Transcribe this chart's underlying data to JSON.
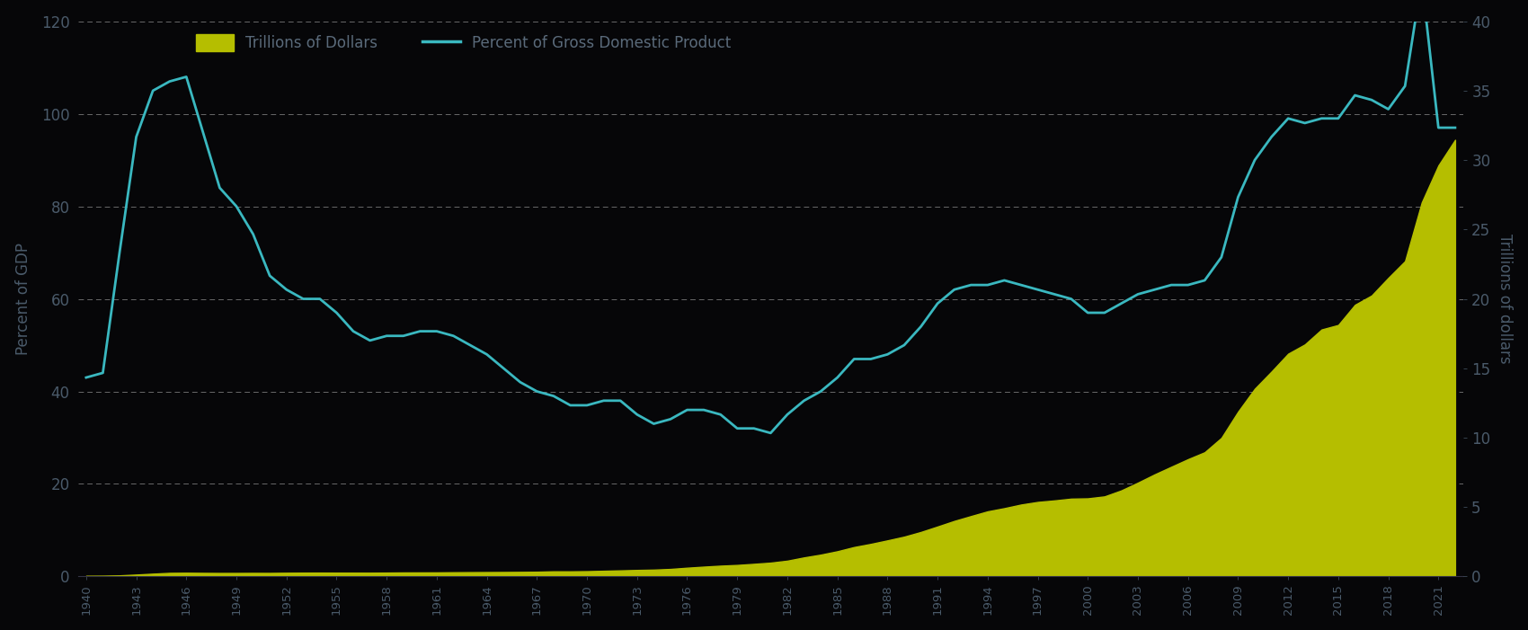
{
  "years": [
    1940,
    1941,
    1942,
    1943,
    1944,
    1945,
    1946,
    1947,
    1948,
    1949,
    1950,
    1951,
    1952,
    1953,
    1954,
    1955,
    1956,
    1957,
    1958,
    1959,
    1960,
    1961,
    1962,
    1963,
    1964,
    1965,
    1966,
    1967,
    1968,
    1969,
    1970,
    1971,
    1972,
    1973,
    1974,
    1975,
    1976,
    1977,
    1978,
    1979,
    1980,
    1981,
    1982,
    1983,
    1984,
    1985,
    1986,
    1987,
    1988,
    1989,
    1990,
    1991,
    1992,
    1993,
    1994,
    1995,
    1996,
    1997,
    1998,
    1999,
    2000,
    2001,
    2002,
    2003,
    2004,
    2005,
    2006,
    2007,
    2008,
    2009,
    2010,
    2011,
    2012,
    2013,
    2014,
    2015,
    2016,
    2017,
    2018,
    2019,
    2020,
    2021,
    2022
  ],
  "debt_pct_gdp": [
    43,
    44,
    70,
    95,
    105,
    107,
    108,
    96,
    84,
    80,
    74,
    65,
    62,
    60,
    60,
    57,
    53,
    51,
    52,
    52,
    53,
    53,
    52,
    50,
    48,
    45,
    42,
    40,
    39,
    37,
    37,
    38,
    38,
    35,
    33,
    34,
    36,
    36,
    35,
    32,
    32,
    31,
    35,
    38,
    40,
    43,
    47,
    47,
    48,
    50,
    54,
    59,
    62,
    63,
    63,
    64,
    63,
    62,
    61,
    60,
    57,
    57,
    59,
    61,
    62,
    63,
    63,
    64,
    69,
    82,
    90,
    95,
    99,
    98,
    99,
    99,
    104,
    103,
    101,
    106,
    129,
    97,
    97
  ],
  "debt_trillions": [
    0.051,
    0.057,
    0.079,
    0.136,
    0.201,
    0.259,
    0.269,
    0.258,
    0.252,
    0.253,
    0.257,
    0.255,
    0.267,
    0.275,
    0.278,
    0.274,
    0.273,
    0.271,
    0.279,
    0.288,
    0.29,
    0.292,
    0.303,
    0.311,
    0.317,
    0.322,
    0.33,
    0.341,
    0.369,
    0.367,
    0.381,
    0.409,
    0.437,
    0.469,
    0.492,
    0.542,
    0.63,
    0.707,
    0.777,
    0.829,
    0.909,
    0.995,
    1.137,
    1.372,
    1.572,
    1.817,
    2.12,
    2.346,
    2.601,
    2.868,
    3.206,
    3.599,
    4.001,
    4.351,
    4.692,
    4.921,
    5.181,
    5.369,
    5.478,
    5.606,
    5.629,
    5.769,
    6.198,
    6.76,
    7.355,
    7.905,
    8.451,
    8.951,
    9.986,
    11.876,
    13.529,
    14.764,
    16.051,
    16.719,
    17.794,
    18.12,
    19.573,
    20.245,
    21.516,
    22.719,
    26.945,
    29.617,
    31.46
  ],
  "background_color": "#060608",
  "line_color": "#3ab8c0",
  "fill_color": "#b5be00",
  "grid_color": "#aaaaaa",
  "text_color": "#5a6a7a",
  "left_ylabel": "Percent of GDP",
  "right_ylabel": "Trillions of dollars",
  "left_ylim": [
    0,
    120
  ],
  "right_ylim": [
    0,
    40
  ],
  "left_yticks": [
    0,
    20,
    40,
    60,
    80,
    100,
    120
  ],
  "right_yticks": [
    0,
    5,
    10,
    15,
    20,
    25,
    30,
    35,
    40
  ],
  "legend_fill_label": "Trillions of Dollars",
  "legend_line_label": "Percent of Gross Domestic Product",
  "tick_label_color": "#4a5a6a",
  "axis_label_color": "#4a5a6a"
}
